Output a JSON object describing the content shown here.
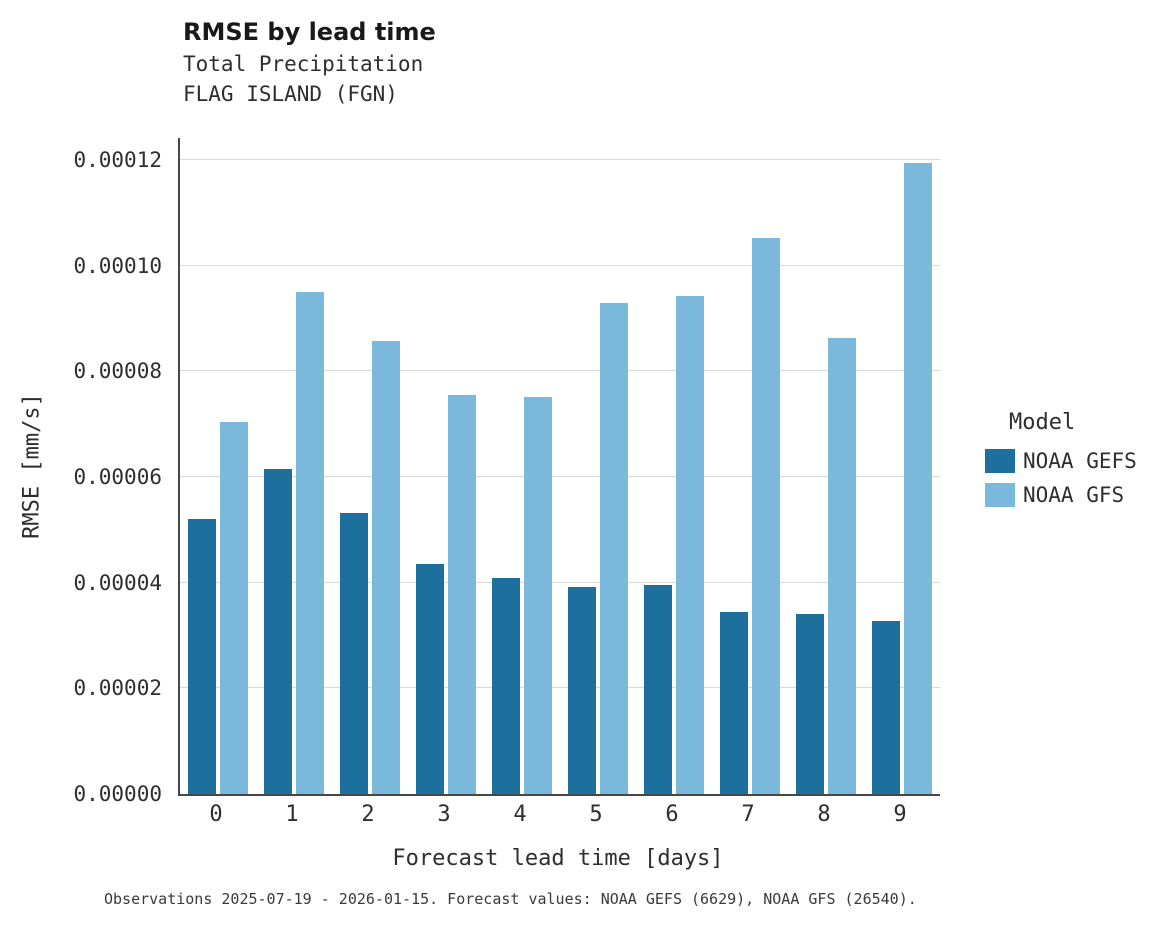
{
  "title": "RMSE by lead time",
  "subtitle1": "Total Precipitation",
  "subtitle2": "FLAG ISLAND (FGN)",
  "caption": "Observations 2025-07-19 - 2026-01-15. Forecast values: NOAA GEFS (6629), NOAA GFS (26540).",
  "legend": {
    "title": "Model",
    "entries": [
      {
        "label": "NOAA GEFS",
        "color": "#1d6f9e"
      },
      {
        "label": "NOAA GFS",
        "color": "#7ab8dc"
      }
    ]
  },
  "chart_data": {
    "type": "bar",
    "title": "RMSE by lead time",
    "subtitle": "Total Precipitation / FLAG ISLAND (FGN)",
    "xlabel": "Forecast lead time [days]",
    "ylabel": "RMSE [mm/s]",
    "categories": [
      "0",
      "1",
      "2",
      "3",
      "4",
      "5",
      "6",
      "7",
      "8",
      "9"
    ],
    "series": [
      {
        "name": "NOAA GEFS",
        "color": "#1d6f9e",
        "values": [
          5.2e-05,
          6.15e-05,
          5.32e-05,
          4.36e-05,
          4.08e-05,
          3.92e-05,
          3.96e-05,
          3.44e-05,
          3.4e-05,
          3.28e-05
        ]
      },
      {
        "name": "NOAA GFS",
        "color": "#7ab8dc",
        "values": [
          7.04e-05,
          9.5e-05,
          8.57e-05,
          7.56e-05,
          7.51e-05,
          9.3e-05,
          9.42e-05,
          0.0001053,
          8.63e-05,
          0.0001195
        ]
      }
    ],
    "ylim": [
      0,
      0.00012
    ],
    "yticks": [
      0,
      2e-05,
      4e-05,
      6e-05,
      8e-05,
      0.0001,
      0.00012
    ],
    "ytick_labels": [
      "0.00000",
      "0.00002",
      "0.00004",
      "0.00006",
      "0.00008",
      "0.00010",
      "0.00012"
    ],
    "grid": true,
    "legend_position": "right"
  }
}
